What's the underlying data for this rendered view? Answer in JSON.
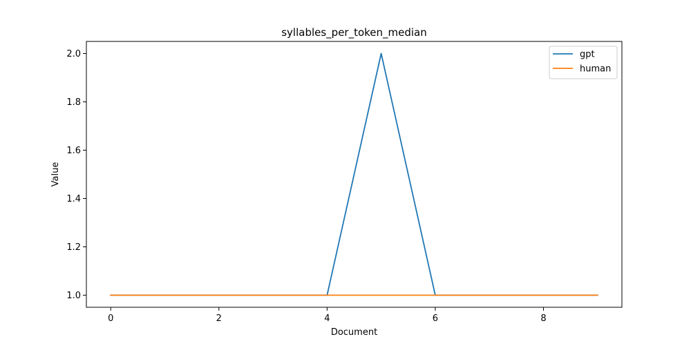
{
  "chart_data": {
    "type": "line",
    "title": "syllables_per_token_median",
    "xlabel": "Document",
    "ylabel": "Value",
    "x": [
      0,
      1,
      2,
      3,
      4,
      5,
      6,
      7,
      8,
      9
    ],
    "xlim": [
      -0.45,
      9.45
    ],
    "ylim": [
      0.95,
      2.05
    ],
    "xticks": [
      0,
      2,
      4,
      6,
      8
    ],
    "xtick_labels": [
      "0",
      "2",
      "4",
      "6",
      "8"
    ],
    "yticks": [
      1.0,
      1.2,
      1.4,
      1.6,
      1.8,
      2.0
    ],
    "ytick_labels": [
      "1.0",
      "1.2",
      "1.4",
      "1.6",
      "1.8",
      "2.0"
    ],
    "grid": false,
    "legend_position": "top-right",
    "series": [
      {
        "name": "gpt",
        "color": "#1f77b4",
        "values": [
          1,
          1,
          1,
          1,
          1,
          2,
          1,
          1,
          1,
          1
        ]
      },
      {
        "name": "human",
        "color": "#ff7f0e",
        "values": [
          1,
          1,
          1,
          1,
          1,
          1,
          1,
          1,
          1,
          1
        ]
      }
    ]
  }
}
